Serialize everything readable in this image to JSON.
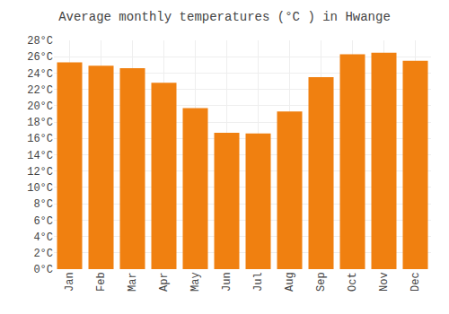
{
  "chart_data": {
    "type": "bar",
    "title": "Average monthly temperatures (°C ) in Hwange",
    "categories": [
      "Jan",
      "Feb",
      "Mar",
      "Apr",
      "May",
      "Jun",
      "Jul",
      "Aug",
      "Sep",
      "Oct",
      "Nov",
      "Dec"
    ],
    "values": [
      25.3,
      24.9,
      24.6,
      22.8,
      19.7,
      16.7,
      16.6,
      19.3,
      23.5,
      26.3,
      26.5,
      25.5
    ],
    "color": "#F08010",
    "ylim": [
      0,
      28
    ],
    "yticks": [
      {
        "value": 0,
        "label": "0°C"
      },
      {
        "value": 2,
        "label": "2°C"
      },
      {
        "value": 4,
        "label": "4°C"
      },
      {
        "value": 6,
        "label": "6°C"
      },
      {
        "value": 8,
        "label": "8°C"
      },
      {
        "value": 10,
        "label": "10°C"
      },
      {
        "value": 12,
        "label": "12°C"
      },
      {
        "value": 14,
        "label": "14°C"
      },
      {
        "value": 16,
        "label": "16°C"
      },
      {
        "value": 18,
        "label": "18°C"
      },
      {
        "value": 20,
        "label": "20°C"
      },
      {
        "value": 22,
        "label": "22°C"
      },
      {
        "value": 24,
        "label": "24°C"
      },
      {
        "value": 26,
        "label": "26°C"
      },
      {
        "value": 28,
        "label": "28°C"
      }
    ],
    "grid": true
  }
}
